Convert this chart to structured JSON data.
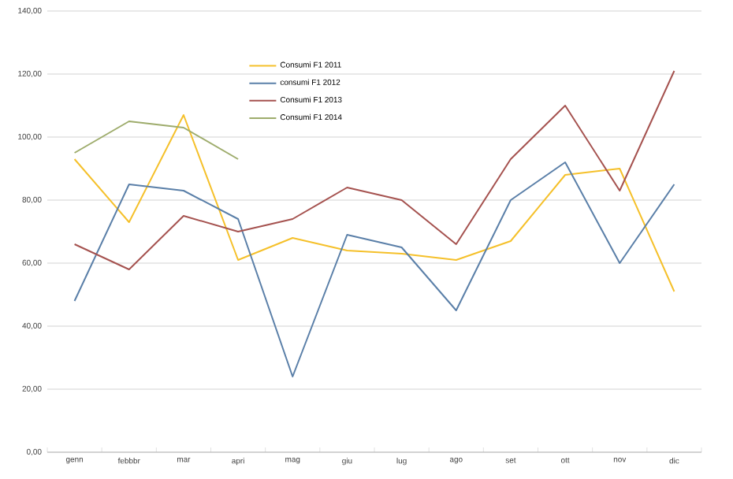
{
  "chart_data": {
    "type": "line",
    "categories": [
      "genn",
      "febbbr",
      "mar",
      "apri",
      "mag",
      "giu",
      "lug",
      "ago",
      "set",
      "ott",
      "nov",
      "dic"
    ],
    "series": [
      {
        "name": "Consumi F1 2011",
        "color": "#f5c02a",
        "values": [
          93,
          73,
          107,
          61,
          68,
          64,
          63,
          61,
          67,
          88,
          90,
          51
        ]
      },
      {
        "name": "consumi F1 2012",
        "color": "#5a7fa8",
        "values": [
          48,
          85,
          83,
          74,
          24,
          69,
          65,
          45,
          80,
          92,
          60,
          85
        ]
      },
      {
        "name": "Consumi  F1 2013",
        "color": "#a5524f",
        "values": [
          66,
          58,
          75,
          70,
          74,
          84,
          80,
          66,
          93,
          110,
          83,
          121
        ]
      },
      {
        "name": "Consumi F1 2014",
        "color": "#9eac6c",
        "values": [
          95,
          105,
          103,
          93,
          null,
          null,
          null,
          null,
          null,
          null,
          null,
          null
        ]
      }
    ],
    "ylim": [
      0,
      140
    ],
    "yticks": [
      {
        "value": 0,
        "label": "0,00"
      },
      {
        "value": 20,
        "label": "20,00"
      },
      {
        "value": 40,
        "label": "40,00"
      },
      {
        "value": 60,
        "label": "60,00"
      },
      {
        "value": 80,
        "label": "80,00"
      },
      {
        "value": 100,
        "label": "100,00"
      },
      {
        "value": 120,
        "label": "120,00"
      },
      {
        "value": 140,
        "label": "140,00"
      }
    ],
    "grid": "y",
    "legend": "top",
    "marker": "none",
    "line_style": "solid"
  }
}
